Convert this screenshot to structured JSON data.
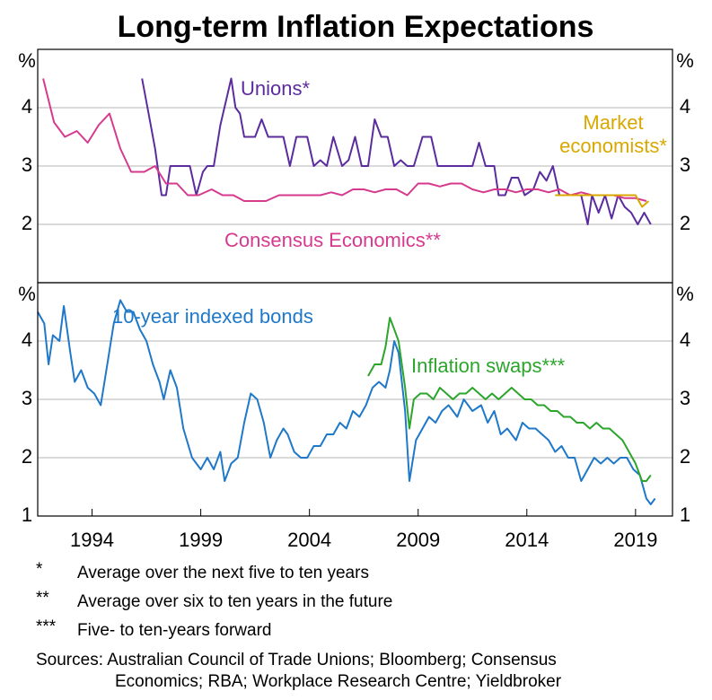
{
  "title": "Long-term Inflation Expectations",
  "chart_data": [
    {
      "type": "line",
      "y_label": "%",
      "ylim": [
        1,
        5
      ],
      "yticks": [
        2,
        3,
        4
      ],
      "xlim": [
        1991.5,
        2020.7
      ],
      "grid": true,
      "series": [
        {
          "name": "Unions*",
          "color": "#5b2c9e",
          "x": [
            1996.3,
            1996.6,
            1996.9,
            1997.2,
            1997.4,
            1997.6,
            1998.0,
            1998.5,
            1998.8,
            1999.1,
            1999.3,
            1999.6,
            1999.9,
            2000.4,
            2000.6,
            2000.8,
            2001.0,
            2001.5,
            2001.8,
            2002.1,
            2002.5,
            2002.8,
            2003.1,
            2003.4,
            2003.9,
            2004.2,
            2004.5,
            2004.8,
            2005.1,
            2005.5,
            2005.8,
            2006.1,
            2006.4,
            2006.7,
            2007.0,
            2007.3,
            2007.6,
            2007.9,
            2008.2,
            2008.5,
            2008.8,
            2009.2,
            2009.6,
            2009.9,
            2010.5,
            2011.0,
            2011.5,
            2011.8,
            2012.1,
            2012.5,
            2012.7,
            2013.0,
            2013.3,
            2013.6,
            2013.9,
            2014.3,
            2014.6,
            2014.9,
            2015.2,
            2015.5,
            2016.0,
            2016.5,
            2016.8,
            2017.0,
            2017.3,
            2017.6,
            2017.9,
            2018.2,
            2018.5,
            2018.8,
            2019.1,
            2019.4,
            2019.7
          ],
          "values": [
            4.5,
            3.9,
            3.3,
            2.5,
            2.5,
            3.0,
            3.0,
            3.0,
            2.5,
            2.9,
            3.0,
            3.0,
            3.7,
            4.5,
            4.0,
            3.9,
            3.5,
            3.5,
            3.8,
            3.5,
            3.5,
            3.5,
            3.0,
            3.5,
            3.5,
            3.0,
            3.1,
            3.0,
            3.5,
            3.0,
            3.1,
            3.5,
            3.0,
            3.0,
            3.8,
            3.5,
            3.5,
            3.0,
            3.1,
            3.0,
            3.0,
            3.5,
            3.5,
            3.0,
            3.0,
            3.0,
            3.0,
            3.4,
            3.0,
            3.0,
            2.5,
            2.5,
            2.8,
            2.8,
            2.5,
            2.6,
            2.9,
            2.75,
            3.0,
            2.5,
            2.5,
            2.5,
            2.0,
            2.5,
            2.2,
            2.5,
            2.1,
            2.5,
            2.3,
            2.2,
            2.0,
            2.2,
            2.0
          ]
        },
        {
          "name": "Consensus Economics**",
          "color": "#d63a8e",
          "x": [
            1991.75,
            1992.25,
            1992.75,
            1993.3,
            1993.8,
            1994.3,
            1994.8,
            1995.3,
            1995.8,
            1996.4,
            1996.9,
            1997.4,
            1997.9,
            1998.4,
            1998.9,
            1999.5,
            2000.0,
            2000.5,
            2001.0,
            2001.5,
            2002.0,
            2002.6,
            2003.0,
            2003.5,
            2004.0,
            2004.5,
            2005.0,
            2005.5,
            2006.0,
            2006.5,
            2007.0,
            2007.5,
            2008.0,
            2008.5,
            2009.0,
            2009.5,
            2010.0,
            2010.5,
            2011.0,
            2011.5,
            2012.0,
            2012.5,
            2013.0,
            2013.5,
            2014.0,
            2014.5,
            2015.0,
            2015.5,
            2016.0,
            2016.5,
            2017.0,
            2017.5,
            2018.0,
            2018.5,
            2019.0,
            2019.5
          ],
          "values": [
            4.5,
            3.75,
            3.5,
            3.6,
            3.4,
            3.7,
            3.9,
            3.3,
            2.9,
            2.9,
            3.0,
            2.7,
            2.7,
            2.5,
            2.5,
            2.6,
            2.5,
            2.5,
            2.4,
            2.4,
            2.4,
            2.5,
            2.5,
            2.5,
            2.5,
            2.5,
            2.55,
            2.5,
            2.6,
            2.6,
            2.55,
            2.6,
            2.6,
            2.5,
            2.7,
            2.7,
            2.65,
            2.7,
            2.7,
            2.6,
            2.55,
            2.6,
            2.6,
            2.55,
            2.6,
            2.6,
            2.55,
            2.6,
            2.5,
            2.55,
            2.5,
            2.5,
            2.5,
            2.45,
            2.45,
            2.4
          ]
        },
        {
          "name": "Market economists*",
          "color": "#d9a800",
          "x": [
            2015.3,
            2016.0,
            2016.5,
            2017.0,
            2017.5,
            2018.0,
            2018.5,
            2019.0,
            2019.3,
            2019.6
          ],
          "values": [
            2.5,
            2.5,
            2.5,
            2.5,
            2.5,
            2.5,
            2.5,
            2.5,
            2.3,
            2.4
          ]
        }
      ]
    },
    {
      "type": "line",
      "y_label": "%",
      "ylim": [
        1,
        5
      ],
      "yticks": [
        1,
        2,
        3,
        4
      ],
      "xlim": [
        1991.5,
        2020.7
      ],
      "xticks": [
        1994,
        1999,
        2004,
        2009,
        2014,
        2019
      ],
      "grid": true,
      "series": [
        {
          "name": "10-year indexed bonds",
          "color": "#1f78c8",
          "x": [
            1991.5,
            1991.8,
            1992.0,
            1992.2,
            1992.5,
            1992.7,
            1993.0,
            1993.2,
            1993.5,
            1993.8,
            1994.1,
            1994.4,
            1994.7,
            1995.0,
            1995.3,
            1995.6,
            1995.9,
            1996.2,
            1996.5,
            1996.8,
            1997.1,
            1997.3,
            1997.6,
            1997.9,
            1998.2,
            1998.6,
            1999.0,
            1999.3,
            1999.6,
            1999.9,
            2000.1,
            2000.4,
            2000.7,
            2001.0,
            2001.3,
            2001.6,
            2001.9,
            2002.2,
            2002.5,
            2002.8,
            2003.0,
            2003.3,
            2003.6,
            2003.9,
            2004.2,
            2004.5,
            2004.8,
            2005.1,
            2005.4,
            2005.7,
            2006.0,
            2006.3,
            2006.6,
            2006.9,
            2007.2,
            2007.5,
            2007.7,
            2007.9,
            2008.1,
            2008.4,
            2008.6,
            2008.9,
            2009.2,
            2009.5,
            2009.8,
            2010.1,
            2010.4,
            2010.8,
            2011.1,
            2011.5,
            2011.9,
            2012.2,
            2012.5,
            2012.8,
            2013.1,
            2013.5,
            2013.8,
            2014.1,
            2014.4,
            2014.7,
            2015.0,
            2015.3,
            2015.6,
            2015.9,
            2016.2,
            2016.5,
            2016.8,
            2017.1,
            2017.4,
            2017.7,
            2018.0,
            2018.3,
            2018.6,
            2018.9,
            2019.2,
            2019.5,
            2019.7,
            2019.9
          ],
          "values": [
            4.5,
            4.3,
            3.6,
            4.1,
            4.0,
            4.6,
            3.8,
            3.3,
            3.5,
            3.2,
            3.1,
            2.9,
            3.6,
            4.3,
            4.7,
            4.5,
            4.5,
            4.2,
            4.0,
            3.6,
            3.3,
            3.0,
            3.5,
            3.2,
            2.5,
            2.0,
            1.8,
            2.0,
            1.8,
            2.1,
            1.6,
            1.9,
            2.0,
            2.6,
            3.1,
            3.0,
            2.6,
            2.0,
            2.3,
            2.5,
            2.4,
            2.1,
            2.0,
            2.0,
            2.2,
            2.2,
            2.4,
            2.4,
            2.6,
            2.5,
            2.8,
            2.7,
            2.9,
            3.2,
            3.3,
            3.2,
            3.5,
            4.0,
            3.8,
            2.8,
            1.6,
            2.3,
            2.5,
            2.7,
            2.6,
            2.8,
            2.9,
            2.7,
            3.0,
            2.8,
            2.9,
            2.6,
            2.8,
            2.4,
            2.5,
            2.3,
            2.6,
            2.5,
            2.5,
            2.4,
            2.3,
            2.1,
            2.2,
            2.0,
            2.0,
            1.6,
            1.8,
            2.0,
            1.9,
            2.0,
            1.9,
            2.0,
            2.0,
            1.8,
            1.7,
            1.3,
            1.2,
            1.3
          ]
        },
        {
          "name": "Inflation swaps***",
          "color": "#2ca52c",
          "x": [
            2006.7,
            2007.0,
            2007.3,
            2007.5,
            2007.7,
            2007.9,
            2008.1,
            2008.4,
            2008.6,
            2008.8,
            2009.1,
            2009.4,
            2009.7,
            2010.0,
            2010.3,
            2010.6,
            2010.9,
            2011.2,
            2011.5,
            2011.8,
            2012.1,
            2012.4,
            2012.7,
            2013.0,
            2013.3,
            2013.6,
            2013.9,
            2014.2,
            2014.5,
            2014.8,
            2015.1,
            2015.4,
            2015.7,
            2016.0,
            2016.3,
            2016.6,
            2016.9,
            2017.2,
            2017.5,
            2017.8,
            2018.1,
            2018.4,
            2018.7,
            2019.0,
            2019.3,
            2019.5,
            2019.7
          ],
          "values": [
            3.4,
            3.6,
            3.6,
            3.9,
            4.4,
            4.2,
            4.0,
            3.2,
            2.5,
            3.0,
            3.1,
            3.1,
            3.0,
            3.2,
            3.1,
            3.0,
            3.1,
            3.1,
            3.2,
            3.1,
            3.0,
            3.1,
            3.0,
            3.1,
            3.2,
            3.1,
            3.0,
            3.0,
            2.9,
            2.9,
            2.8,
            2.8,
            2.7,
            2.7,
            2.6,
            2.6,
            2.5,
            2.6,
            2.5,
            2.5,
            2.4,
            2.3,
            2.1,
            1.9,
            1.6,
            1.6,
            1.7
          ]
        }
      ]
    }
  ],
  "notes": [
    {
      "marker": "*",
      "text": "Average over the next five to ten years"
    },
    {
      "marker": "**",
      "text": "Average over six to ten years in the future"
    },
    {
      "marker": "***",
      "text": "Five- to ten-years forward"
    }
  ],
  "sources": "Sources: Australian Council of Trade Unions; Bloomberg; Consensus Economics; RBA; Workplace Research Centre; Yieldbroker"
}
